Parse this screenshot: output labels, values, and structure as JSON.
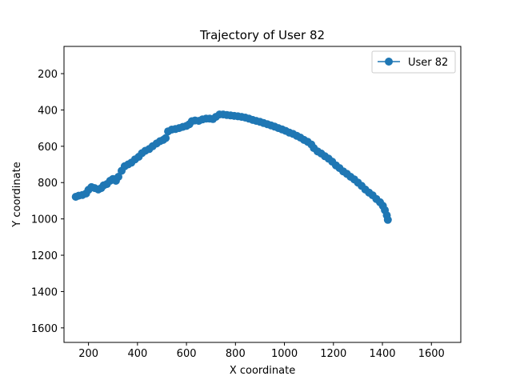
{
  "chart_data": {
    "type": "line",
    "title": "Trajectory of User 82",
    "xlabel": "X coordinate",
    "ylabel": "Y coordinate",
    "xlim": [
      100,
      1720
    ],
    "ylim": [
      1680,
      50
    ],
    "y_inverted": true,
    "grid": false,
    "legend_position": "top-right",
    "x_ticks": [
      200,
      400,
      600,
      800,
      1000,
      1200,
      1400,
      1600
    ],
    "y_ticks": [
      200,
      400,
      600,
      800,
      1000,
      1200,
      1400,
      1600
    ],
    "series": [
      {
        "name": "User 82",
        "color": "#1f77b4",
        "marker": "circle",
        "points": [
          [
            148,
            878
          ],
          [
            160,
            872
          ],
          [
            175,
            868
          ],
          [
            190,
            860
          ],
          [
            200,
            840
          ],
          [
            212,
            825
          ],
          [
            225,
            830
          ],
          [
            240,
            838
          ],
          [
            252,
            830
          ],
          [
            262,
            815
          ],
          [
            275,
            808
          ],
          [
            288,
            790
          ],
          [
            300,
            780
          ],
          [
            312,
            790
          ],
          [
            322,
            768
          ],
          [
            335,
            735
          ],
          [
            348,
            710
          ],
          [
            362,
            700
          ],
          [
            375,
            690
          ],
          [
            390,
            672
          ],
          [
            405,
            658
          ],
          [
            418,
            638
          ],
          [
            432,
            625
          ],
          [
            448,
            615
          ],
          [
            462,
            600
          ],
          [
            478,
            585
          ],
          [
            492,
            572
          ],
          [
            505,
            565
          ],
          [
            515,
            555
          ],
          [
            525,
            518
          ],
          [
            540,
            508
          ],
          [
            555,
            505
          ],
          [
            570,
            500
          ],
          [
            585,
            493
          ],
          [
            600,
            488
          ],
          [
            612,
            478
          ],
          [
            622,
            462
          ],
          [
            635,
            458
          ],
          [
            650,
            460
          ],
          [
            665,
            452
          ],
          [
            680,
            448
          ],
          [
            695,
            448
          ],
          [
            708,
            450
          ],
          [
            720,
            438
          ],
          [
            735,
            425
          ],
          [
            750,
            425
          ],
          [
            765,
            428
          ],
          [
            780,
            430
          ],
          [
            795,
            433
          ],
          [
            810,
            435
          ],
          [
            825,
            438
          ],
          [
            840,
            442
          ],
          [
            855,
            448
          ],
          [
            870,
            455
          ],
          [
            885,
            460
          ],
          [
            900,
            465
          ],
          [
            915,
            472
          ],
          [
            930,
            478
          ],
          [
            945,
            485
          ],
          [
            960,
            492
          ],
          [
            975,
            500
          ],
          [
            990,
            507
          ],
          [
            1005,
            515
          ],
          [
            1020,
            525
          ],
          [
            1035,
            532
          ],
          [
            1050,
            542
          ],
          [
            1065,
            552
          ],
          [
            1080,
            565
          ],
          [
            1095,
            575
          ],
          [
            1110,
            590
          ],
          [
            1120,
            610
          ],
          [
            1135,
            628
          ],
          [
            1150,
            640
          ],
          [
            1165,
            655
          ],
          [
            1180,
            668
          ],
          [
            1195,
            685
          ],
          [
            1210,
            705
          ],
          [
            1225,
            720
          ],
          [
            1240,
            738
          ],
          [
            1255,
            752
          ],
          [
            1270,
            768
          ],
          [
            1285,
            782
          ],
          [
            1300,
            800
          ],
          [
            1315,
            818
          ],
          [
            1330,
            838
          ],
          [
            1345,
            855
          ],
          [
            1360,
            870
          ],
          [
            1375,
            890
          ],
          [
            1390,
            908
          ],
          [
            1402,
            928
          ],
          [
            1410,
            952
          ],
          [
            1418,
            980
          ],
          [
            1422,
            1005
          ]
        ]
      }
    ]
  }
}
